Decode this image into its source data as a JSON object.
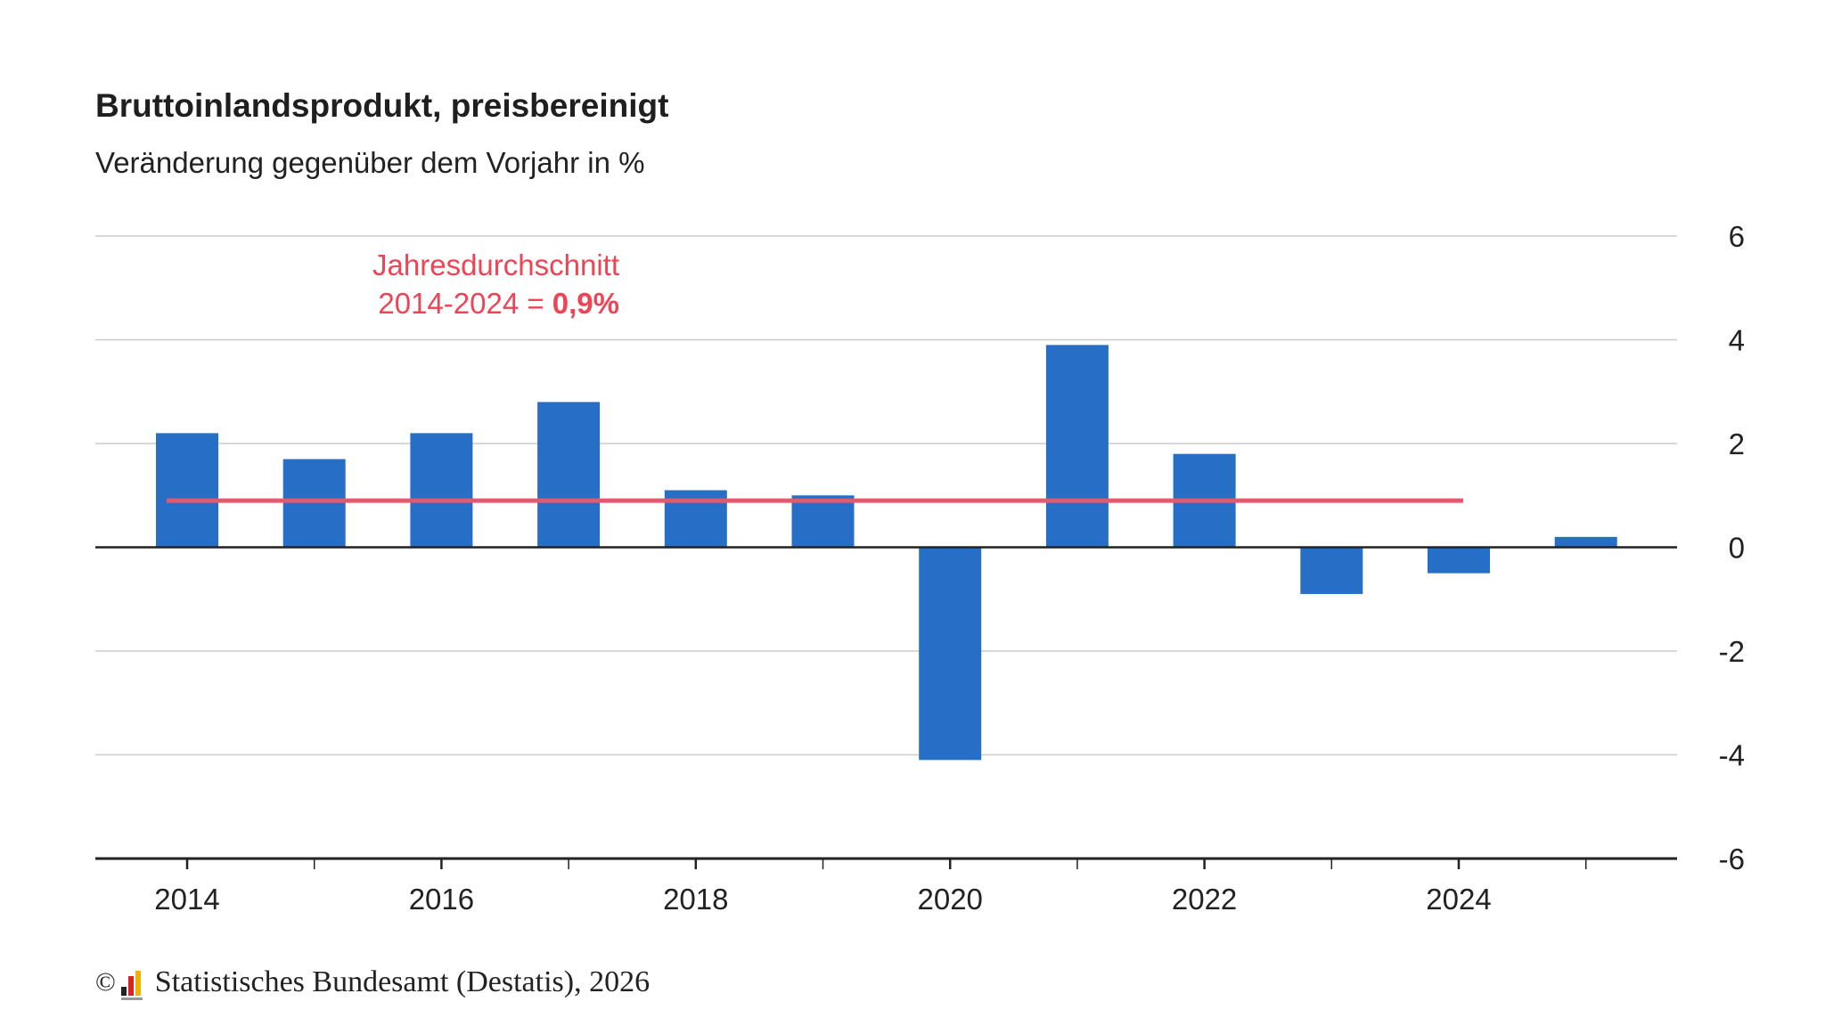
{
  "header": {
    "title": "Bruttoinlandsprodukt, preisbereinigt",
    "subtitle": "Veränderung gegenüber dem Vorjahr in %"
  },
  "annotation": {
    "line1": "Jahresdurchschnitt",
    "line2_prefix": "2014-2024 = ",
    "line2_value": "0,9%"
  },
  "footer": {
    "copyright": "©",
    "source": "Statistisches Bundesamt (Destatis), 2026"
  },
  "colors": {
    "bar": "#276fc6",
    "average_line": "#e35a70",
    "annotation": "#ee4455",
    "grid": "#cccccc",
    "axis": "#222222"
  },
  "chart_data": {
    "type": "bar",
    "categories": [
      "2014",
      "2015",
      "2016",
      "2017",
      "2018",
      "2019",
      "2020",
      "2021",
      "2022",
      "2023",
      "2024",
      "2025"
    ],
    "values": [
      2.2,
      1.7,
      2.2,
      2.8,
      1.1,
      1.0,
      -4.1,
      3.9,
      1.8,
      -0.9,
      -0.5,
      0.2
    ],
    "x_tick_labels": [
      "2014",
      "2016",
      "2018",
      "2020",
      "2022",
      "2024"
    ],
    "y_ticks": [
      6,
      4,
      2,
      0,
      -2,
      -4,
      -6
    ],
    "y_tick_labels": [
      "6",
      "4",
      "2",
      "0",
      "-2",
      "-4",
      "-6"
    ],
    "ylim": [
      -6,
      6
    ],
    "y_axis_position": "right",
    "grid": true,
    "reference_line": {
      "value": 0.9,
      "from": "2014",
      "to": "2024"
    }
  }
}
